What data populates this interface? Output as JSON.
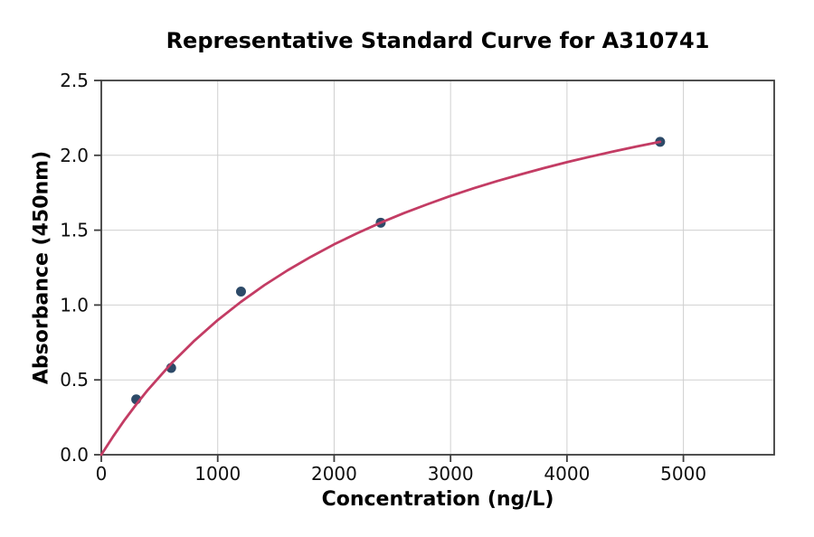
{
  "chart_data": {
    "type": "scatter",
    "title": "Representative Standard Curve for A310741",
    "xlabel": "Concentration (ng/L)",
    "ylabel": "Absorbance (450nm)",
    "xlim": [
      0,
      5780
    ],
    "ylim": [
      0,
      2.5
    ],
    "x_ticks": [
      0,
      1000,
      2000,
      3000,
      4000,
      5000
    ],
    "x_tick_labels": [
      "0",
      "1000",
      "2000",
      "3000",
      "4000",
      "5000"
    ],
    "y_ticks": [
      0,
      0.5,
      1.0,
      1.5,
      2.0,
      2.5
    ],
    "y_tick_labels": [
      "0.0",
      "0.5",
      "1.0",
      "1.5",
      "2.0",
      "2.5"
    ],
    "grid": true,
    "legend": "none",
    "series": [
      {
        "name": "standard-points",
        "type": "scatter",
        "color": "#2d4a68",
        "x": [
          300,
          600,
          1200,
          2400,
          4800
        ],
        "y": [
          0.37,
          0.58,
          1.09,
          1.55,
          2.09
        ]
      },
      {
        "name": "fitted-curve",
        "type": "line",
        "color": "#c33c64",
        "points": [
          [
            0,
            0.0
          ],
          [
            100,
            0.12
          ],
          [
            200,
            0.232
          ],
          [
            300,
            0.336
          ],
          [
            400,
            0.433
          ],
          [
            600,
            0.608
          ],
          [
            800,
            0.762
          ],
          [
            1000,
            0.899
          ],
          [
            1200,
            1.022
          ],
          [
            1400,
            1.132
          ],
          [
            1600,
            1.232
          ],
          [
            1800,
            1.322
          ],
          [
            2000,
            1.405
          ],
          [
            2200,
            1.48
          ],
          [
            2400,
            1.55
          ],
          [
            2600,
            1.614
          ],
          [
            2800,
            1.673
          ],
          [
            3000,
            1.729
          ],
          [
            3200,
            1.78
          ],
          [
            3400,
            1.828
          ],
          [
            3600,
            1.872
          ],
          [
            3800,
            1.914
          ],
          [
            4000,
            1.954
          ],
          [
            4200,
            1.991
          ],
          [
            4400,
            2.026
          ],
          [
            4600,
            2.059
          ],
          [
            4800,
            2.09
          ]
        ]
      }
    ],
    "colors": {
      "grid": "#d0d0d0",
      "spine": "#3d3d3d",
      "tick_text": "#0f0f0f",
      "background": "#ffffff"
    }
  }
}
